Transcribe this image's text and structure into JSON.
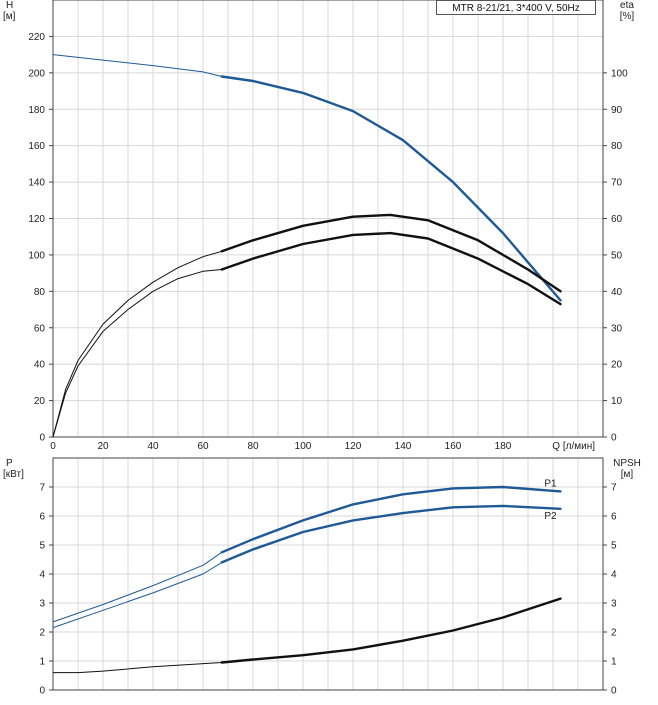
{
  "model_label": "MTR 8-21/21, 3*400 V, 50Hz",
  "chart_data": [
    {
      "type": "line",
      "ylabel_left": [
        "H",
        "[м]"
      ],
      "ylabel_right": [
        "eta",
        "[%]"
      ],
      "xlabel": "Q [л/мин]",
      "xlim": [
        0,
        220
      ],
      "ylim_left": [
        0,
        240
      ],
      "ylim_right": [
        0,
        120
      ],
      "x_ticks": [
        0,
        20,
        40,
        60,
        80,
        100,
        120,
        140,
        160,
        180
      ],
      "y_ticks_left": [
        0,
        20,
        40,
        60,
        80,
        100,
        120,
        140,
        160,
        180,
        200,
        220
      ],
      "y_ticks_right": [
        0,
        10,
        20,
        30,
        40,
        50,
        60,
        70,
        80,
        90,
        100
      ],
      "grid": true,
      "series": [
        {
          "axis": "left",
          "color": "#1f5a96",
          "x": [
            0,
            20,
            40,
            60,
            67.5,
            80,
            100,
            120,
            140,
            160,
            180,
            203
          ],
          "y": [
            210,
            207,
            204,
            200.5,
            198,
            195.5,
            189,
            179,
            163,
            140,
            112,
            75
          ]
        },
        {
          "axis": "right",
          "color": "#111111",
          "x": [
            0,
            5,
            10,
            20,
            30,
            40,
            50,
            60,
            67.5,
            80,
            100,
            120,
            135,
            150,
            170,
            190,
            203
          ],
          "y": [
            0,
            13,
            21,
            31,
            37.5,
            42.5,
            46.5,
            49.5,
            51,
            54,
            58,
            60.5,
            61,
            59.5,
            54,
            46,
            40
          ]
        },
        {
          "axis": "right",
          "color": "#111111",
          "x": [
            0,
            5,
            10,
            20,
            30,
            40,
            50,
            60,
            67.5,
            80,
            100,
            120,
            135,
            150,
            170,
            190,
            203
          ],
          "y": [
            0,
            12,
            19.5,
            29,
            35,
            40,
            43.5,
            45.5,
            46,
            49,
            53,
            55.5,
            56,
            54.5,
            49,
            42,
            36.5
          ]
        }
      ]
    },
    {
      "type": "line",
      "ylabel_left": [
        "P",
        "[кВт]"
      ],
      "ylabel_right": [
        "NPSH",
        "[м]"
      ],
      "xlim": [
        0,
        220
      ],
      "ylim_left": [
        0,
        8
      ],
      "ylim_right": [
        0,
        8
      ],
      "y_ticks_left": [
        0,
        1,
        2,
        3,
        4,
        5,
        6,
        7
      ],
      "y_ticks_right": [
        0,
        1,
        2,
        3,
        4,
        5,
        6,
        7
      ],
      "grid": true,
      "series": [
        {
          "name": "P1",
          "axis": "left",
          "color": "#1f5a96",
          "x": [
            0,
            20,
            40,
            60,
            67.5,
            80,
            100,
            120,
            140,
            160,
            180,
            203
          ],
          "y": [
            2.35,
            2.95,
            3.6,
            4.3,
            4.75,
            5.2,
            5.85,
            6.4,
            6.75,
            6.95,
            7.0,
            6.85
          ]
        },
        {
          "name": "P2",
          "axis": "left",
          "color": "#1f5a96",
          "x": [
            0,
            20,
            40,
            60,
            67.5,
            80,
            100,
            120,
            140,
            160,
            180,
            203
          ],
          "y": [
            2.15,
            2.75,
            3.35,
            4.0,
            4.4,
            4.85,
            5.45,
            5.85,
            6.1,
            6.3,
            6.35,
            6.25
          ]
        },
        {
          "axis": "right",
          "color": "#111111",
          "x": [
            0,
            10,
            20,
            40,
            67.5,
            80,
            100,
            120,
            140,
            160,
            180,
            203
          ],
          "y": [
            0.6,
            0.6,
            0.65,
            0.8,
            0.95,
            1.05,
            1.2,
            1.4,
            1.7,
            2.05,
            2.5,
            3.15
          ]
        }
      ]
    }
  ]
}
